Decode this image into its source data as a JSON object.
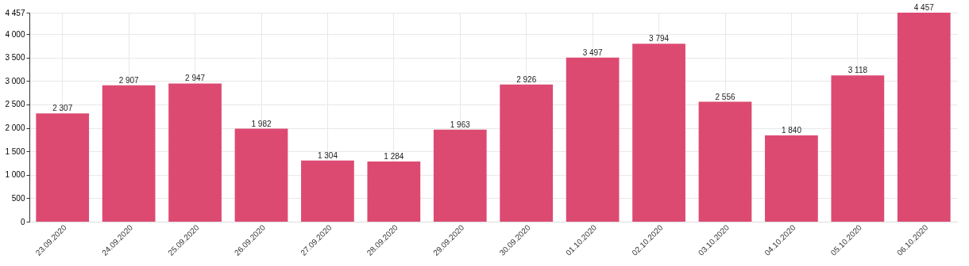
{
  "chart_data": {
    "type": "bar",
    "categories": [
      "23.09.2020",
      "24.09.2020",
      "25.09.2020",
      "26.09.2020",
      "27.09.2020",
      "28.09.2020",
      "29.09.2020",
      "30.09.2020",
      "01.10.2020",
      "02.10.2020",
      "03.10.2020",
      "04.10.2020",
      "05.10.2020",
      "06.10.2020"
    ],
    "values": [
      2307,
      2907,
      2947,
      1982,
      1304,
      1284,
      1963,
      2926,
      3497,
      3794,
      2556,
      1840,
      3118,
      4457
    ],
    "value_labels": [
      "2 307",
      "2 907",
      "2 947",
      "1 982",
      "1 304",
      "1 284",
      "1 963",
      "2 926",
      "3 497",
      "3 794",
      "2 556",
      "1 840",
      "3 118",
      "4 457"
    ],
    "color": "#dc4a72",
    "ylim": [
      0,
      4457
    ],
    "yticks": [
      {
        "value": 0,
        "label": "0"
      },
      {
        "value": 500,
        "label": "500"
      },
      {
        "value": 1000,
        "label": "1 000"
      },
      {
        "value": 1500,
        "label": "1 500"
      },
      {
        "value": 2000,
        "label": "2 000"
      },
      {
        "value": 2500,
        "label": "2 500"
      },
      {
        "value": 3000,
        "label": "3 000"
      },
      {
        "value": 3500,
        "label": "3 500"
      },
      {
        "value": 4000,
        "label": "4 000"
      },
      {
        "value": 4457,
        "label": "4 457"
      }
    ],
    "grid": true
  }
}
